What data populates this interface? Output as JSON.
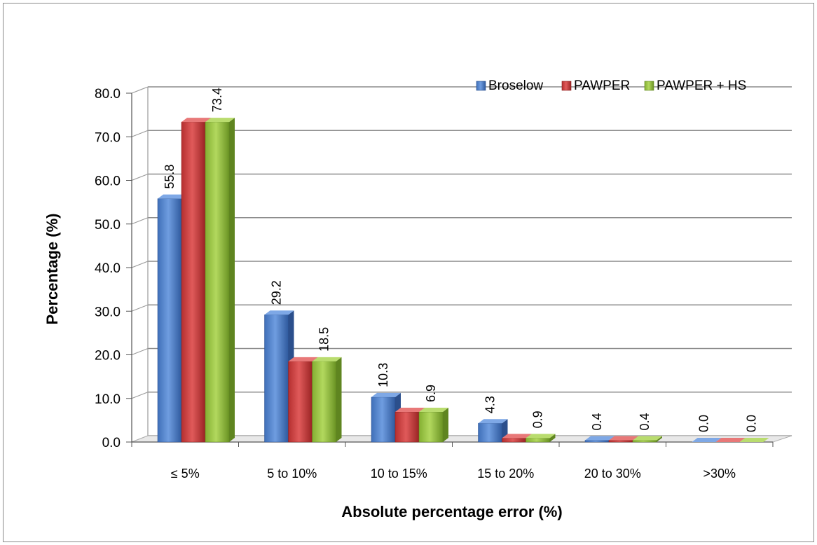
{
  "chart_data": {
    "type": "bar",
    "title": "",
    "xlabel": "Absolute percentage error (%)",
    "ylabel": "Percentage (%)",
    "ylim": [
      0,
      80
    ],
    "ytick_step": 10,
    "ytick_labels": [
      "0.0",
      "10.0",
      "20.0",
      "30.0",
      "40.0",
      "50.0",
      "60.0",
      "70.0",
      "80.0"
    ],
    "categories": [
      "≤ 5%",
      "5 to 10%",
      "10 to 15%",
      "15 to 20%",
      "20 to 30%",
      ">30%"
    ],
    "series": [
      {
        "name": "Broselow",
        "color": "#4a7cc8",
        "values": [
          55.8,
          29.2,
          10.3,
          4.3,
          0.4,
          0.0
        ],
        "labels": [
          "55.8",
          "29.2",
          "10.3",
          "4.3",
          "0.4",
          "0.0"
        ]
      },
      {
        "name": "PAWPER",
        "color": "#c83a3a",
        "values": [
          73.4,
          18.5,
          6.9,
          0.9,
          0.4,
          0.0
        ],
        "labels": [
          "",
          "",
          "",
          "",
          "",
          ""
        ]
      },
      {
        "name": "PAWPER + HS",
        "color": "#93c13e",
        "values": [
          73.4,
          18.5,
          6.9,
          0.9,
          0.4,
          0.0
        ],
        "labels": [
          "73.4",
          "18.5",
          "6.9",
          "0.9",
          "0.4",
          "0.0"
        ]
      }
    ],
    "grid": true,
    "legend_position": "top-right"
  }
}
